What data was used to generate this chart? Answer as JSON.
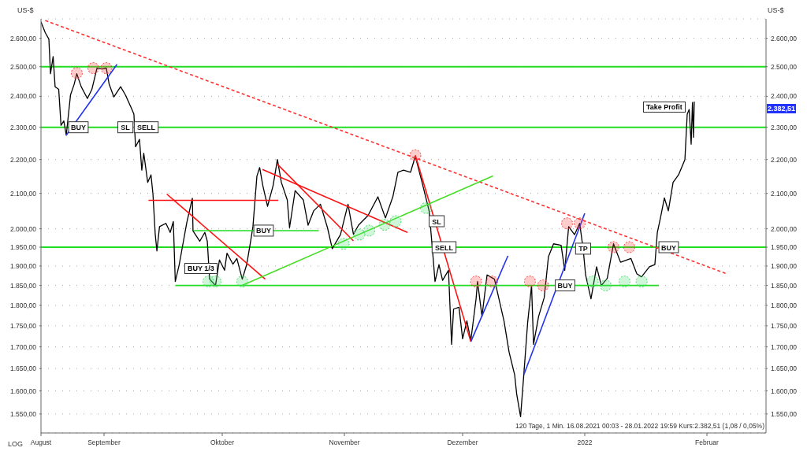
{
  "chart_data": {
    "type": "line",
    "ylabel": "US-$",
    "y2label": "US-$",
    "log": true,
    "grid": "y",
    "xlim": [
      "2021-08-16",
      "2022-02-16"
    ],
    "xticks": [
      {
        "value": "2021-08-16",
        "label": "August"
      },
      {
        "value": "2021-09-01",
        "label": "September"
      },
      {
        "value": "2021-10-01",
        "label": "Oktober"
      },
      {
        "value": "2021-11-01",
        "label": "November"
      },
      {
        "value": "2021-12-01",
        "label": "Dezember"
      },
      {
        "value": "2022",
        "label": "2022"
      },
      {
        "value": "2022-02-01",
        "label": "Februar"
      }
    ],
    "ylim": [
      1510,
      2670
    ],
    "yticks": [
      {
        "value": 1550,
        "label": "1.550,00"
      },
      {
        "value": 1600,
        "label": "1.600,00"
      },
      {
        "value": 1650,
        "label": "1.650,00"
      },
      {
        "value": 1700,
        "label": "1.700,00"
      },
      {
        "value": 1750,
        "label": "1.750,00"
      },
      {
        "value": 1800,
        "label": "1.800,00"
      },
      {
        "value": 1850,
        "label": "1.850,00"
      },
      {
        "value": 1900,
        "label": "1.900,00"
      },
      {
        "value": 1950,
        "label": "1.950,00"
      },
      {
        "value": 2000,
        "label": "2.000,00"
      },
      {
        "value": 2100,
        "label": "2.100,00"
      },
      {
        "value": 2200,
        "label": "2.200,00"
      },
      {
        "value": 2300,
        "label": "2.300,00"
      },
      {
        "value": 2400,
        "label": "2.400,00"
      },
      {
        "value": 2500,
        "label": "2.500,00"
      },
      {
        "value": 2600,
        "label": "2.600,00"
      }
    ],
    "ref_lines": [
      {
        "axis": "y",
        "value": 2500,
        "color": "#22dd22"
      },
      {
        "axis": "y",
        "value": 2300,
        "color": "#22dd22"
      },
      {
        "axis": "y",
        "value": 1950,
        "color": "#22dd22"
      }
    ],
    "series": [
      {
        "color": "#000000",
        "x": [
          "2021-08-16T00:00",
          "2021-08-17T02:00",
          "2021-08-18T00:00",
          "2021-08-18T10:00",
          "2021-08-19T02:00",
          "2021-08-19T14:00",
          "2021-08-20T12:00",
          "2021-08-21T02:00",
          "2021-08-21T19:00",
          "2021-08-22T10:00",
          "2021-08-23T12:00",
          "2021-08-24T10:00",
          "2021-08-25T02:00",
          "2021-08-26T05:00",
          "2021-08-27T02:00",
          "2021-08-27T19:00",
          "2021-08-28T22:00",
          "2021-08-30T05:00",
          "2021-08-31T14:00",
          "2021-09-01T14:00",
          "2021-09-02T07:00",
          "2021-09-03T12:00",
          "2021-09-05T05:00",
          "2021-09-06T10:00",
          "2021-09-08T02:00",
          "2021-09-08T14:00",
          "2021-09-09T00:00",
          "2021-09-10T00:00",
          "2021-09-10T14:00",
          "2021-09-11T02:00",
          "2021-09-12T02:00",
          "2021-09-12T22:00",
          "2021-09-13T10:00",
          "2021-09-14T00:00",
          "2021-09-14T10:00",
          "2021-09-15T02:00",
          "2021-09-16T17:00",
          "2021-09-17T19:00",
          "2021-09-18T14:00",
          "2021-09-19T02:00",
          "2021-09-20T02:00",
          "2021-09-20T17:00",
          "2021-09-22T00:00",
          "2021-09-23T10:00",
          "2021-09-23T14:00",
          "2021-09-25T07:00",
          "2021-09-26T14:00",
          "2021-09-27T05:00",
          "2021-09-27T19:00",
          "2021-09-29T07:00",
          "2021-09-30T07:00",
          "2021-10-01T14:00",
          "2021-10-02T05:00",
          "2021-10-03T17:00",
          "2021-10-04T17:00",
          "2021-10-06T02:00",
          "2021-10-07T05:00",
          "2021-10-08T05:00",
          "2021-10-08T19:00",
          "2021-10-09T19:00",
          "2021-10-10T12:00",
          "2021-10-11T07:00",
          "2021-10-12T12:00",
          "2021-10-13T22:00",
          "2021-10-15T00:00",
          "2021-10-16T00:00",
          "2021-10-17T12:00",
          "2021-10-18T02:00",
          "2021-10-19T12:00",
          "2021-10-21T14:00",
          "2021-10-22T19:00",
          "2021-10-24T05:00",
          "2021-10-25T22:00",
          "2021-10-27T17:00",
          "2021-10-28T22:00",
          "2021-10-31T00:00",
          "2021-11-01T22:00",
          "2021-11-03T07:00",
          "2021-11-04T14:00",
          "2021-11-07T00:00",
          "2021-11-09T12:00",
          "2021-11-11T10:00",
          "2021-11-13T07:00",
          "2021-11-14T14:00",
          "2021-11-16T00:00",
          "2021-11-17T19:00",
          "2021-11-19T00:00",
          "2021-11-20T17:00",
          "2021-11-22T12:00",
          "2021-11-23T07:00",
          "2021-11-24T00:00",
          "2021-11-25T00:00",
          "2021-11-25T22:00",
          "2021-11-27T10:00",
          "2021-11-28T05:00",
          "2021-11-28T17:00",
          "2021-11-30T02:00",
          "2021-12-01T00:00",
          "2021-12-02T02:00",
          "2021-12-03T02:00",
          "2021-12-04T10:00",
          "2021-12-04T19:00",
          "2021-12-05T22:00",
          "2021-12-07T05:00",
          "2021-12-09T02:00",
          "2021-12-10T10:00",
          "2021-12-11T12:00",
          "2021-12-12T19:00",
          "2021-12-14T05:00",
          "2021-12-14T17:00",
          "2021-12-15T17:00",
          "2021-12-16T14:00",
          "2021-12-17T12:00",
          "2021-12-18T12:00",
          "2021-12-19T00:00",
          "2021-12-20T07:00",
          "2021-12-21T17:00",
          "2021-12-22T19:00",
          "2021-12-24T02:00",
          "2021-12-26T00:00",
          "2021-12-26T22:00",
          "2021-12-27T22:00",
          "2021-12-29T10:00",
          "2021-12-30T17:00",
          "2021-12-31T14:00",
          "2022-01-01T05:00",
          "2022-01-02T14:00",
          "2022-01-04T00:00",
          "2022-01-05T05:00",
          "2022-01-06T17:00",
          "2022-01-08T07:00",
          "2022-01-10T02:00",
          "2022-01-12T17:00",
          "2022-01-14T05:00",
          "2022-01-15T10:00",
          "2022-01-17T10:00",
          "2022-01-18T19:00",
          "2022-01-19T10:00",
          "2022-01-20T05:00",
          "2022-01-21T05:00",
          "2022-01-22T05:00",
          "2022-01-23T10:00",
          "2022-01-24T19:00",
          "2022-01-26T10:00",
          "2022-01-27T00:00",
          "2022-01-27T12:00",
          "2022-01-28T00:00",
          "2022-01-28T08:00",
          "2022-01-28T14:00",
          "2022-01-28T19:00"
        ],
        "values": [
          2659,
          2620,
          2597,
          2476,
          2535,
          2432,
          2423,
          2306,
          2320,
          2275,
          2405,
          2440,
          2476,
          2432,
          2410,
          2393,
          2423,
          2495,
          2492,
          2495,
          2441,
          2398,
          2432,
          2405,
          2357,
          2342,
          2239,
          2262,
          2168,
          2219,
          2132,
          2154,
          2098,
          1984,
          1940,
          2006,
          2015,
          1990,
          2020,
          1860,
          1904,
          1940,
          2017,
          2086,
          1994,
          1966,
          1990,
          1966,
          1866,
          1850,
          1916,
          1889,
          1934,
          1905,
          1920,
          1866,
          1904,
          1966,
          2006,
          2150,
          2176,
          2123,
          2063,
          2123,
          2200,
          2132,
          2081,
          2003,
          2108,
          2081,
          2010,
          2050,
          2069,
          2003,
          1946,
          1984,
          2069,
          1985,
          2010,
          2037,
          2090,
          2030,
          2090,
          2162,
          2168,
          2162,
          2210,
          2132,
          2050,
          1951,
          1860,
          1904,
          1863,
          1889,
          1706,
          1791,
          1795,
          1719,
          1762,
          1715,
          1816,
          1860,
          1773,
          1877,
          1866,
          1808,
          1762,
          1688,
          1636,
          1594,
          1544,
          1642,
          1757,
          1850,
          1706,
          1773,
          1819,
          1925,
          1959,
          1955,
          1889,
          2006,
          1984,
          2015,
          1946,
          1877,
          1816,
          1898,
          1850,
          1868,
          1959,
          1910,
          1920,
          1880,
          1872,
          1898,
          1904,
          1990,
          2030,
          2087,
          2050,
          2132,
          2154,
          2200,
          2342,
          2357,
          2247,
          2380,
          2268,
          2382.51
        ]
      },
      {
        "type": "line",
        "color": "#ff3333",
        "line_style": "dashed",
        "x": [
          "2021-08-17T02:00",
          "2022-02-06"
        ],
        "values": [
          2664,
          1880
        ]
      },
      {
        "type": "line",
        "color": "#2233ee",
        "x": [
          "2021-08-22T10:00",
          "2021-09-04T07:00"
        ],
        "values": [
          2275,
          2508
        ]
      },
      {
        "type": "line",
        "color": "#2233ee",
        "x": [
          "2021-12-03T02:00",
          "2021-12-12T12:00"
        ],
        "values": [
          1712,
          1927
        ]
      },
      {
        "type": "line",
        "color": "#2233ee",
        "x": [
          "2021-12-16T14:00",
          "2022-01-01"
        ],
        "values": [
          1637,
          2043
        ]
      },
      {
        "type": "line",
        "color": "#ff1111",
        "x": [
          "2021-09-16T22:00",
          "2021-10-11T22:00"
        ],
        "values": [
          2098,
          1866
        ]
      },
      {
        "type": "line",
        "color": "#ff1111",
        "x": [
          "2021-09-12T07:00",
          "2021-10-15T05:00"
        ],
        "values": [
          2080,
          2080
        ]
      },
      {
        "type": "line",
        "color": "#ff1111",
        "x": [
          "2021-10-11T05:00",
          "2021-11-17"
        ],
        "values": [
          2170,
          1990
        ]
      },
      {
        "type": "line",
        "color": "#ff1111",
        "x": [
          "2021-10-15",
          "2021-11-03T07:00"
        ],
        "values": [
          2186,
          1967
        ]
      },
      {
        "type": "line",
        "color": "#ff1111",
        "x": [
          "2021-11-19",
          "2021-12-03T02:00"
        ],
        "values": [
          2213,
          1712
        ]
      },
      {
        "type": "line",
        "color": "#44dd22",
        "x": [
          "2021-10-06T02:00",
          "2021-12-08T17:00"
        ],
        "values": [
          1850,
          2151
        ]
      },
      {
        "type": "line",
        "color": "#22dd22",
        "x": [
          "2021-09-23T19:00",
          "2021-10-25T12:00"
        ],
        "values": [
          1995,
          1995
        ]
      },
      {
        "type": "line",
        "color": "#22dd22",
        "x": [
          "2021-09-19T02:00",
          "2022-01-19T19:00"
        ],
        "values": [
          1850,
          1850
        ]
      },
      {
        "type": "scatter",
        "marker": "circle",
        "color": "#ff3333",
        "x": [
          "2021-08-25T02:00",
          "2021-08-29T07:00",
          "2021-09-01T14:00",
          "2021-11-19",
          "2021-12-04T10:00",
          "2021-12-08T12:00",
          "2021-12-18T02:00",
          "2021-12-21T10:00",
          "2021-12-27T12:00",
          "2021-12-30T17:00",
          "2022-01-08T07:00",
          "2022-01-12T07:00"
        ],
        "values": [
          2478,
          2495,
          2495,
          2213,
          1860,
          1860,
          1860,
          1850,
          2015,
          2015,
          1950,
          1950
        ]
      },
      {
        "type": "scatter",
        "marker": "circle",
        "color": "#44dd66",
        "x": [
          "2021-09-27T12:00",
          "2021-09-29T07:00",
          "2021-10-06T02:00",
          "2021-10-31T19:00",
          "2021-11-04T19:00",
          "2021-11-07T07:00",
          "2021-11-11T05:00",
          "2021-11-14",
          "2021-11-21T17:00",
          "2022-01-03",
          "2022-01-06T07:00",
          "2022-01-11T02:00",
          "2022-01-15T10:00"
        ],
        "values": [
          1860,
          1860,
          1860,
          1959,
          1984,
          1995,
          2011,
          2021,
          2058,
          1860,
          1850,
          1860,
          1860
        ]
      }
    ],
    "annotations": [
      {
        "text": "BUY",
        "x": "2021-08-25T12:00",
        "y": 2300
      },
      {
        "text": "SL",
        "x": "2021-09-06T10:00",
        "y": 2300
      },
      {
        "text": "SELL",
        "x": "2021-09-11T17:00",
        "y": 2300
      },
      {
        "text": "BUY",
        "x": "2021-10-11T12:00",
        "y": 1995
      },
      {
        "text": "SL",
        "x": "2021-11-24T10:00",
        "y": 2021
      },
      {
        "text": "SELL",
        "x": "2021-11-26T07:00",
        "y": 1950
      },
      {
        "text": "TP",
        "x": "2021-12-31T14:00",
        "y": 1946
      },
      {
        "text": "BUY",
        "x": "2021-12-27T00:00",
        "y": 1850
      },
      {
        "text": "BUY",
        "x": "2022-01-22T07:00",
        "y": 1950
      },
      "BUY 1/3",
      "Take Profit",
      "2.382,51",
      "LOG",
      "120 Tage, 1 Min. 16.08.2021 00:03 - 28.01.2022 19:59  Kurs:2.382,51 (1,08 / 0,05%)"
    ]
  }
}
